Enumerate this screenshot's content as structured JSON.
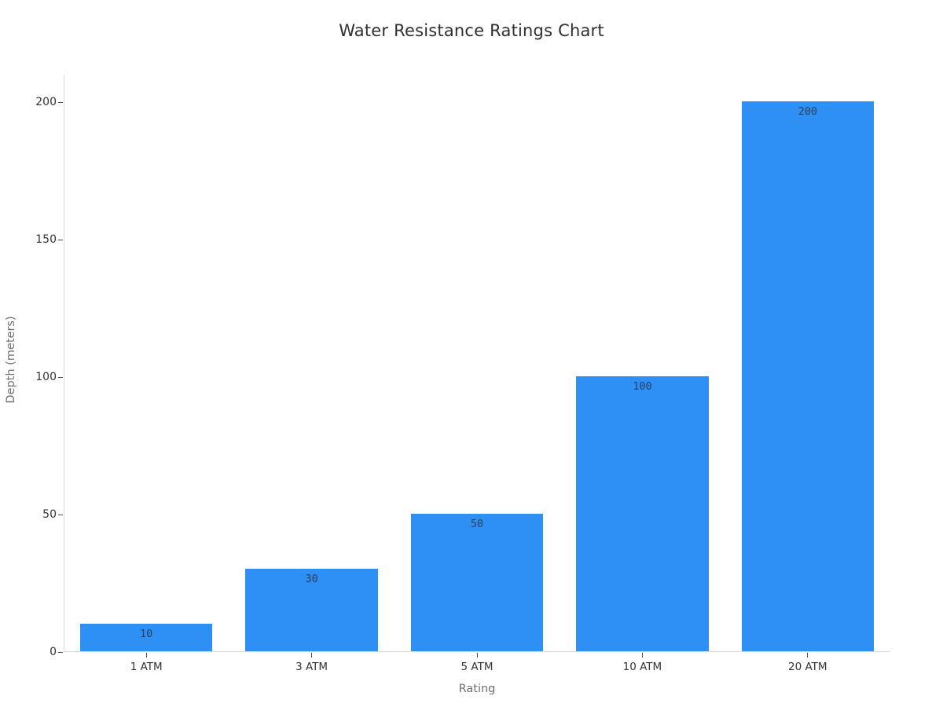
{
  "chart_data": {
    "type": "bar",
    "title": "Water Resistance Ratings Chart",
    "xlabel": "Rating",
    "ylabel": "Depth (meters)",
    "categories": [
      "1 ATM",
      "3 ATM",
      "5 ATM",
      "10 ATM",
      "20 ATM"
    ],
    "values": [
      10,
      30,
      50,
      100,
      200
    ],
    "bar_labels": [
      "10",
      "30",
      "50",
      "100",
      "200"
    ],
    "yticks": [
      0,
      50,
      100,
      150,
      200
    ],
    "ylim": [
      0,
      210
    ],
    "grid": false,
    "legend": false,
    "bar_width_fraction": 0.8,
    "colors": {
      "bar": "#2e90f4",
      "bar_label": "#2a3f5f",
      "title": "#2f2f2f",
      "tick_label": "#333333",
      "axis_title": "#6f6f6f",
      "axis_line": "#d9d9d9",
      "background": "#ffffff"
    }
  }
}
